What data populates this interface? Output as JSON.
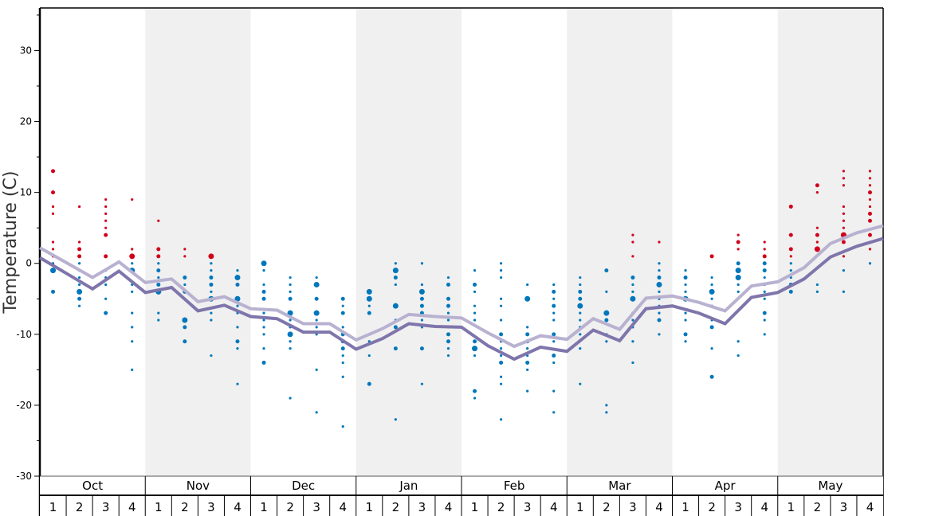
{
  "chart_data": {
    "type": "line+scatter",
    "title": "",
    "ylabel": "Temperature (C)",
    "xlabel": "",
    "ylim": [
      -30,
      36
    ],
    "yticks": [
      -30,
      -20,
      -10,
      0,
      10,
      20,
      30
    ],
    "yminor_ticks": [
      -25,
      -15,
      -5,
      5,
      15,
      25,
      35
    ],
    "months": [
      "Oct",
      "Nov",
      "Dec",
      "Jan",
      "Feb",
      "Mar",
      "Apr",
      "May"
    ],
    "shaded_months": [
      "Nov",
      "Jan",
      "Mar",
      "May"
    ],
    "week_labels": [
      "1",
      "2",
      "3",
      "4"
    ],
    "colors": {
      "shade": "#f0f0f0",
      "line_upper": "#b8b1d0",
      "line_lower": "#7f75ab",
      "dot_warm": "#d0021b",
      "dot_cold": "#0077bb"
    },
    "series": [
      {
        "name": "upper-average",
        "values": [
          2.2,
          0.1,
          -2.0,
          0.2,
          -2.7,
          -2.2,
          -5.4,
          -4.7,
          -6.4,
          -6.6,
          -8.5,
          -8.5,
          -10.8,
          -9.2,
          -7.2,
          -7.5,
          -7.7,
          -9.8,
          -11.7,
          -10.2,
          -10.7,
          -7.8,
          -9.3,
          -4.9,
          -4.6,
          -5.5,
          -6.7,
          -3.2,
          -2.6,
          -0.6,
          2.8,
          4.3,
          5.3
        ]
      },
      {
        "name": "lower-average",
        "values": [
          0.8,
          -1.4,
          -3.6,
          -1.1,
          -4.1,
          -3.4,
          -6.7,
          -5.9,
          -7.5,
          -7.8,
          -9.7,
          -9.7,
          -12.1,
          -10.6,
          -8.5,
          -8.9,
          -9.0,
          -11.6,
          -13.5,
          -11.8,
          -12.4,
          -9.4,
          -10.9,
          -6.4,
          -6.0,
          -7.0,
          -8.5,
          -4.8,
          -4.1,
          -2.2,
          0.9,
          2.4,
          3.5
        ]
      }
    ],
    "observations_note": "per week: [temperature, frequency 1-3]",
    "observations": [
      [
        [
          13,
          2
        ],
        [
          10,
          2
        ],
        [
          8,
          1
        ],
        [
          7,
          1
        ],
        [
          3,
          1
        ],
        [
          2,
          1
        ],
        [
          1,
          1
        ],
        [
          0,
          1
        ],
        [
          -1,
          3
        ],
        [
          -4,
          2
        ]
      ],
      [
        [
          8,
          1
        ],
        [
          3,
          1
        ],
        [
          2,
          2
        ],
        [
          1,
          2
        ],
        [
          0,
          1
        ],
        [
          -1,
          1
        ],
        [
          -2,
          1
        ],
        [
          -3,
          1
        ],
        [
          -4,
          3
        ],
        [
          -5,
          2
        ],
        [
          -6,
          1
        ]
      ],
      [
        [
          9,
          1
        ],
        [
          8,
          1
        ],
        [
          7,
          1
        ],
        [
          6,
          1
        ],
        [
          5,
          1
        ],
        [
          4,
          2
        ],
        [
          1,
          2
        ],
        [
          -1,
          1
        ],
        [
          -2,
          1
        ],
        [
          -3,
          1
        ],
        [
          -5,
          1
        ],
        [
          -7,
          2
        ]
      ],
      [
        [
          9,
          1
        ],
        [
          2,
          1
        ],
        [
          1,
          3
        ],
        [
          0,
          1
        ],
        [
          -1,
          3
        ],
        [
          -3,
          1
        ],
        [
          -4,
          1
        ],
        [
          -7,
          1
        ],
        [
          -9,
          1
        ],
        [
          -11,
          1
        ],
        [
          -15,
          1
        ]
      ],
      [
        [
          6,
          1
        ],
        [
          2,
          2
        ],
        [
          1,
          2
        ],
        [
          0,
          1
        ],
        [
          -1,
          2
        ],
        [
          -2,
          1
        ],
        [
          -3,
          2
        ],
        [
          -4,
          3
        ],
        [
          -7,
          1
        ],
        [
          -8,
          1
        ]
      ],
      [
        [
          2,
          1
        ],
        [
          1,
          1
        ],
        [
          -2,
          2
        ],
        [
          -3,
          1
        ],
        [
          -4,
          2
        ],
        [
          -5,
          1
        ],
        [
          -8,
          3
        ],
        [
          -9,
          2
        ],
        [
          -11,
          2
        ]
      ],
      [
        [
          1,
          3
        ],
        [
          0,
          1
        ],
        [
          -1,
          1
        ],
        [
          -2,
          2
        ],
        [
          -3,
          2
        ],
        [
          -4,
          1
        ],
        [
          -5,
          3
        ],
        [
          -7,
          1
        ],
        [
          -8,
          1
        ],
        [
          -13,
          1
        ]
      ],
      [
        [
          -1,
          1
        ],
        [
          -2,
          3
        ],
        [
          -3,
          2
        ],
        [
          -5,
          3
        ],
        [
          -6,
          1
        ],
        [
          -7,
          1
        ],
        [
          -9,
          1
        ],
        [
          -11,
          2
        ],
        [
          -12,
          1
        ],
        [
          -17,
          1
        ]
      ],
      [
        [
          0,
          3
        ],
        [
          -1,
          1
        ],
        [
          -3,
          1
        ],
        [
          -4,
          2
        ],
        [
          -5,
          2
        ],
        [
          -7,
          1
        ],
        [
          -8,
          1
        ],
        [
          -9,
          1
        ],
        [
          -10,
          1
        ],
        [
          -12,
          1
        ],
        [
          -14,
          2
        ]
      ],
      [
        [
          -2,
          1
        ],
        [
          -3,
          1
        ],
        [
          -4,
          1
        ],
        [
          -5,
          2
        ],
        [
          -7,
          3
        ],
        [
          -8,
          1
        ],
        [
          -9,
          1
        ],
        [
          -10,
          3
        ],
        [
          -11,
          1
        ],
        [
          -12,
          1
        ],
        [
          -19,
          1
        ]
      ],
      [
        [
          -2,
          1
        ],
        [
          -3,
          3
        ],
        [
          -5,
          2
        ],
        [
          -7,
          3
        ],
        [
          -8,
          1
        ],
        [
          -9,
          1
        ],
        [
          -10,
          1
        ],
        [
          -15,
          1
        ],
        [
          -21,
          1
        ]
      ],
      [
        [
          -5,
          2
        ],
        [
          -6,
          1
        ],
        [
          -7,
          2
        ],
        [
          -9,
          1
        ],
        [
          -10,
          2
        ],
        [
          -11,
          2
        ],
        [
          -12,
          2
        ],
        [
          -13,
          1
        ],
        [
          -14,
          1
        ],
        [
          -16,
          1
        ],
        [
          -23,
          1
        ]
      ],
      [
        [
          -4,
          3
        ],
        [
          -5,
          3
        ],
        [
          -6,
          1
        ],
        [
          -7,
          2
        ],
        [
          -10,
          1
        ],
        [
          -11,
          1
        ],
        [
          -13,
          1
        ],
        [
          -17,
          2
        ]
      ],
      [
        [
          0,
          1
        ],
        [
          -1,
          3
        ],
        [
          -2,
          2
        ],
        [
          -3,
          1
        ],
        [
          -6,
          3
        ],
        [
          -8,
          1
        ],
        [
          -9,
          2
        ],
        [
          -12,
          2
        ],
        [
          -22,
          1
        ]
      ],
      [
        [
          0,
          1
        ],
        [
          -3,
          1
        ],
        [
          -4,
          3
        ],
        [
          -5,
          2
        ],
        [
          -6,
          2
        ],
        [
          -7,
          2
        ],
        [
          -8,
          1
        ],
        [
          -9,
          1
        ],
        [
          -12,
          2
        ],
        [
          -17,
          1
        ]
      ],
      [
        [
          -2,
          1
        ],
        [
          -3,
          2
        ],
        [
          -5,
          2
        ],
        [
          -6,
          2
        ],
        [
          -7,
          1
        ],
        [
          -8,
          1
        ],
        [
          -9,
          1
        ],
        [
          -10,
          2
        ],
        [
          -11,
          2
        ],
        [
          -12,
          1
        ],
        [
          -13,
          1
        ]
      ],
      [
        [
          -1,
          1
        ],
        [
          -3,
          2
        ],
        [
          -4,
          1
        ],
        [
          -6,
          1
        ],
        [
          -7,
          1
        ],
        [
          -8,
          1
        ],
        [
          -11,
          2
        ],
        [
          -12,
          3
        ],
        [
          -13,
          1
        ],
        [
          -18,
          2
        ],
        [
          -19,
          1
        ]
      ],
      [
        [
          0,
          1
        ],
        [
          -1,
          1
        ],
        [
          -2,
          1
        ],
        [
          -5,
          1
        ],
        [
          -6,
          1
        ],
        [
          -8,
          1
        ],
        [
          -10,
          2
        ],
        [
          -11,
          1
        ],
        [
          -12,
          1
        ],
        [
          -13,
          1
        ],
        [
          -14,
          2
        ],
        [
          -16,
          1
        ],
        [
          -17,
          1
        ],
        [
          -22,
          1
        ]
      ],
      [
        [
          -3,
          1
        ],
        [
          -5,
          3
        ],
        [
          -9,
          1
        ],
        [
          -10,
          2
        ],
        [
          -11,
          2
        ],
        [
          -12,
          1
        ],
        [
          -13,
          1
        ],
        [
          -14,
          2
        ],
        [
          -15,
          1
        ],
        [
          -18,
          1
        ]
      ],
      [
        [
          -3,
          1
        ],
        [
          -4,
          2
        ],
        [
          -5,
          1
        ],
        [
          -6,
          2
        ],
        [
          -7,
          1
        ],
        [
          -8,
          1
        ],
        [
          -10,
          2
        ],
        [
          -11,
          1
        ],
        [
          -13,
          2
        ],
        [
          -14,
          1
        ],
        [
          -18,
          1
        ],
        [
          -21,
          1
        ]
      ],
      [
        [
          -2,
          1
        ],
        [
          -3,
          1
        ],
        [
          -4,
          2
        ],
        [
          -5,
          2
        ],
        [
          -6,
          3
        ],
        [
          -7,
          1
        ],
        [
          -8,
          1
        ],
        [
          -9,
          1
        ],
        [
          -10,
          1
        ],
        [
          -12,
          1
        ],
        [
          -17,
          1
        ]
      ],
      [
        [
          -1,
          2
        ],
        [
          -4,
          1
        ],
        [
          -7,
          3
        ],
        [
          -8,
          2
        ],
        [
          -10,
          1
        ],
        [
          -11,
          1
        ],
        [
          -20,
          1
        ],
        [
          -21,
          1
        ]
      ],
      [
        [
          4,
          1
        ],
        [
          3,
          1
        ],
        [
          1,
          1
        ],
        [
          -2,
          2
        ],
        [
          -3,
          1
        ],
        [
          -4,
          1
        ],
        [
          -5,
          3
        ],
        [
          -7,
          1
        ],
        [
          -8,
          1
        ],
        [
          -9,
          1
        ],
        [
          -11,
          1
        ],
        [
          -14,
          1
        ]
      ],
      [
        [
          3,
          1
        ],
        [
          0,
          1
        ],
        [
          -1,
          1
        ],
        [
          -2,
          2
        ],
        [
          -3,
          3
        ],
        [
          -4,
          1
        ],
        [
          -5,
          1
        ],
        [
          -6,
          1
        ],
        [
          -7,
          1
        ],
        [
          -8,
          2
        ],
        [
          -10,
          1
        ]
      ],
      [
        [
          -1,
          1
        ],
        [
          -2,
          2
        ],
        [
          -3,
          1
        ],
        [
          -4,
          1
        ],
        [
          -5,
          3
        ],
        [
          -7,
          1
        ],
        [
          -8,
          1
        ],
        [
          -10,
          2
        ],
        [
          -11,
          1
        ]
      ],
      [
        [
          1,
          2
        ],
        [
          -2,
          1
        ],
        [
          -3,
          1
        ],
        [
          -4,
          3
        ],
        [
          -5,
          1
        ],
        [
          -6,
          1
        ],
        [
          -8,
          1
        ],
        [
          -9,
          2
        ],
        [
          -12,
          1
        ],
        [
          -16,
          2
        ]
      ],
      [
        [
          4,
          1
        ],
        [
          3,
          2
        ],
        [
          2,
          1
        ],
        [
          0,
          2
        ],
        [
          -1,
          3
        ],
        [
          -2,
          3
        ],
        [
          -3,
          1
        ],
        [
          -4,
          1
        ],
        [
          -11,
          1
        ],
        [
          -13,
          1
        ]
      ],
      [
        [
          3,
          1
        ],
        [
          2,
          1
        ],
        [
          1,
          2
        ],
        [
          0,
          2
        ],
        [
          -1,
          2
        ],
        [
          -2,
          1
        ],
        [
          -3,
          1
        ],
        [
          -4,
          1
        ],
        [
          -5,
          1
        ],
        [
          -7,
          2
        ],
        [
          -8,
          1
        ],
        [
          -10,
          1
        ]
      ],
      [
        [
          8,
          2
        ],
        [
          4,
          2
        ],
        [
          2,
          2
        ],
        [
          1,
          1
        ],
        [
          0,
          1
        ],
        [
          -1,
          1
        ],
        [
          -2,
          1
        ],
        [
          -3,
          2
        ],
        [
          -4,
          2
        ]
      ],
      [
        [
          11,
          2
        ],
        [
          10,
          1
        ],
        [
          5,
          1
        ],
        [
          4,
          2
        ],
        [
          3,
          1
        ],
        [
          2,
          3
        ],
        [
          -3,
          1
        ],
        [
          -4,
          1
        ]
      ],
      [
        [
          13,
          1
        ],
        [
          12,
          1
        ],
        [
          11,
          1
        ],
        [
          8,
          1
        ],
        [
          7,
          1
        ],
        [
          6,
          1
        ],
        [
          5,
          1
        ],
        [
          4,
          3
        ],
        [
          3,
          2
        ],
        [
          1,
          1
        ],
        [
          -1,
          1
        ],
        [
          -4,
          1
        ]
      ],
      [
        [
          13,
          1
        ],
        [
          12,
          1
        ],
        [
          11,
          1
        ],
        [
          10,
          2
        ],
        [
          9,
          1
        ],
        [
          8,
          1
        ],
        [
          7,
          2
        ],
        [
          6,
          2
        ],
        [
          4,
          2
        ],
        [
          3,
          1
        ],
        [
          2,
          1
        ],
        [
          0,
          1
        ]
      ]
    ]
  }
}
